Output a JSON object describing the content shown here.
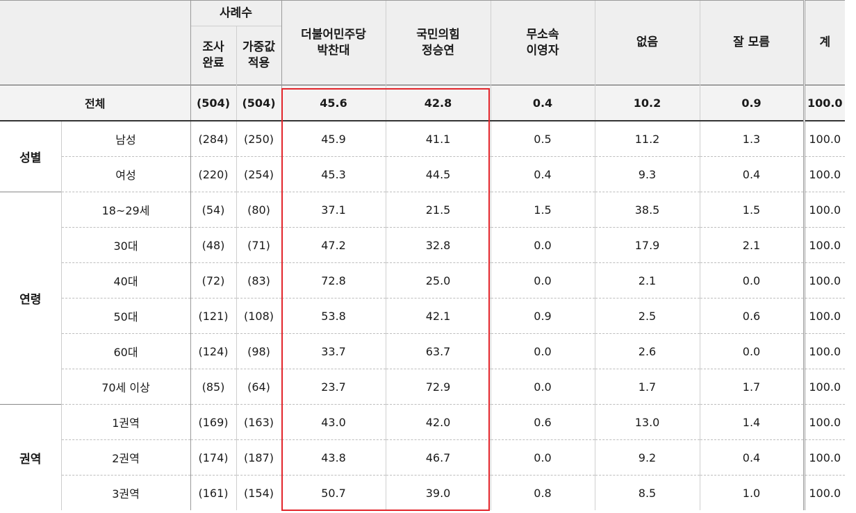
{
  "header": {
    "sample_group": "사례수",
    "col_surveyed": [
      "조사",
      "완료"
    ],
    "col_weighted": [
      "가중값",
      "적용"
    ],
    "col_dem": [
      "더불어민주당",
      "박찬대"
    ],
    "col_ppp": [
      "국민의힘",
      "정승연"
    ],
    "col_ind": [
      "무소속",
      "이영자"
    ],
    "col_none": "없음",
    "col_unsure": "잘 모름",
    "col_total": "계"
  },
  "total_row": {
    "label": "전체",
    "surveyed": "(504)",
    "weighted": "(504)",
    "dem": "45.6",
    "ppp": "42.8",
    "ind": "0.4",
    "none": "10.2",
    "unsure": "0.9",
    "total": "100.0"
  },
  "groups": [
    {
      "name": "성별",
      "rows": [
        {
          "label": "남성",
          "surveyed": "(284)",
          "weighted": "(250)",
          "dem": "45.9",
          "ppp": "41.1",
          "ind": "0.5",
          "none": "11.2",
          "unsure": "1.3",
          "total": "100.0"
        },
        {
          "label": "여성",
          "surveyed": "(220)",
          "weighted": "(254)",
          "dem": "45.3",
          "ppp": "44.5",
          "ind": "0.4",
          "none": "9.3",
          "unsure": "0.4",
          "total": "100.0"
        }
      ]
    },
    {
      "name": "연령",
      "rows": [
        {
          "label": "18~29세",
          "surveyed": "(54)",
          "weighted": "(80)",
          "dem": "37.1",
          "ppp": "21.5",
          "ind": "1.5",
          "none": "38.5",
          "unsure": "1.5",
          "total": "100.0"
        },
        {
          "label": "30대",
          "surveyed": "(48)",
          "weighted": "(71)",
          "dem": "47.2",
          "ppp": "32.8",
          "ind": "0.0",
          "none": "17.9",
          "unsure": "2.1",
          "total": "100.0"
        },
        {
          "label": "40대",
          "surveyed": "(72)",
          "weighted": "(83)",
          "dem": "72.8",
          "ppp": "25.0",
          "ind": "0.0",
          "none": "2.1",
          "unsure": "0.0",
          "total": "100.0"
        },
        {
          "label": "50대",
          "surveyed": "(121)",
          "weighted": "(108)",
          "dem": "53.8",
          "ppp": "42.1",
          "ind": "0.9",
          "none": "2.5",
          "unsure": "0.6",
          "total": "100.0"
        },
        {
          "label": "60대",
          "surveyed": "(124)",
          "weighted": "(98)",
          "dem": "33.7",
          "ppp": "63.7",
          "ind": "0.0",
          "none": "2.6",
          "unsure": "0.0",
          "total": "100.0"
        },
        {
          "label": "70세 이상",
          "surveyed": "(85)",
          "weighted": "(64)",
          "dem": "23.7",
          "ppp": "72.9",
          "ind": "0.0",
          "none": "1.7",
          "unsure": "1.7",
          "total": "100.0"
        }
      ]
    },
    {
      "name": "권역",
      "rows": [
        {
          "label": "1권역",
          "surveyed": "(169)",
          "weighted": "(163)",
          "dem": "43.0",
          "ppp": "42.0",
          "ind": "0.6",
          "none": "13.0",
          "unsure": "1.4",
          "total": "100.0"
        },
        {
          "label": "2권역",
          "surveyed": "(174)",
          "weighted": "(187)",
          "dem": "43.8",
          "ppp": "46.7",
          "ind": "0.0",
          "none": "9.2",
          "unsure": "0.4",
          "total": "100.0"
        },
        {
          "label": "3권역",
          "surveyed": "(161)",
          "weighted": "(154)",
          "dem": "50.7",
          "ppp": "39.0",
          "ind": "0.8",
          "none": "8.5",
          "unsure": "1.0",
          "total": "100.0"
        }
      ]
    }
  ],
  "highlight_color": "#e2252b"
}
